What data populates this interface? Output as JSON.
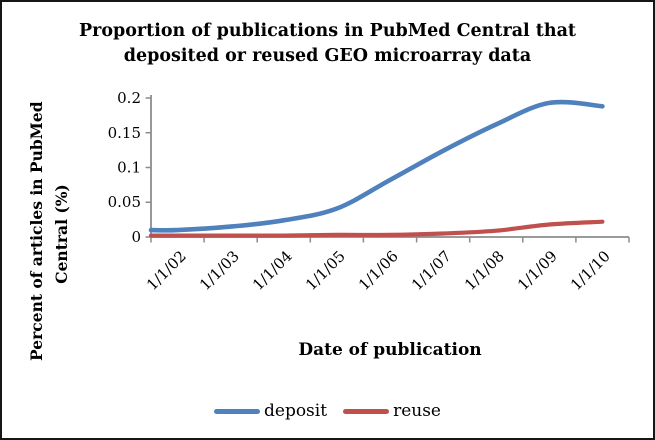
{
  "figure": {
    "title_lines": [
      "Proportion of publications in PubMed Central that",
      "deposited or reused GEO microarray data"
    ]
  },
  "y_axis": {
    "title_lines": [
      "Percent of articles in PubMed",
      "Central (%)"
    ],
    "tick_labels": [
      "0.2",
      "0.15",
      "0.1",
      "0.05",
      "0"
    ]
  },
  "x_axis": {
    "title": "Date of publication"
  },
  "legend": {
    "items": [
      {
        "label": "deposit",
        "color": "#4F81BD"
      },
      {
        "label": "reuse",
        "color": "#C0504D"
      }
    ]
  },
  "colors": {
    "deposit_line": "#4F81BD",
    "reuse_line": "#C0504D",
    "axis": "#8C8C8C"
  },
  "chart_data": {
    "type": "line",
    "title": "Proportion of publications in PubMed Central that deposited or reused GEO microarray data",
    "xlabel": "Date of publication",
    "ylabel": "Percent of articles in PubMed Central (%)",
    "categories": [
      "1/1/02",
      "1/1/03",
      "1/1/04",
      "1/1/05",
      "1/1/06",
      "1/1/07",
      "1/1/08",
      "1/1/09",
      "1/1/10"
    ],
    "series": [
      {
        "name": "deposit",
        "color": "#4F81BD",
        "values": [
          0.01,
          0.015,
          0.024,
          0.041,
          0.082,
          0.124,
          0.162,
          0.193,
          0.188
        ]
      },
      {
        "name": "reuse",
        "color": "#C0504D",
        "values": [
          0.002,
          0.002,
          0.002,
          0.003,
          0.003,
          0.005,
          0.009,
          0.018,
          0.022
        ]
      }
    ],
    "ylim": [
      0,
      0.2
    ],
    "yticks": [
      0,
      0.05,
      0.1,
      0.15,
      0.2
    ],
    "grid": false,
    "legend_position": "bottom",
    "line_style": "smooth"
  }
}
